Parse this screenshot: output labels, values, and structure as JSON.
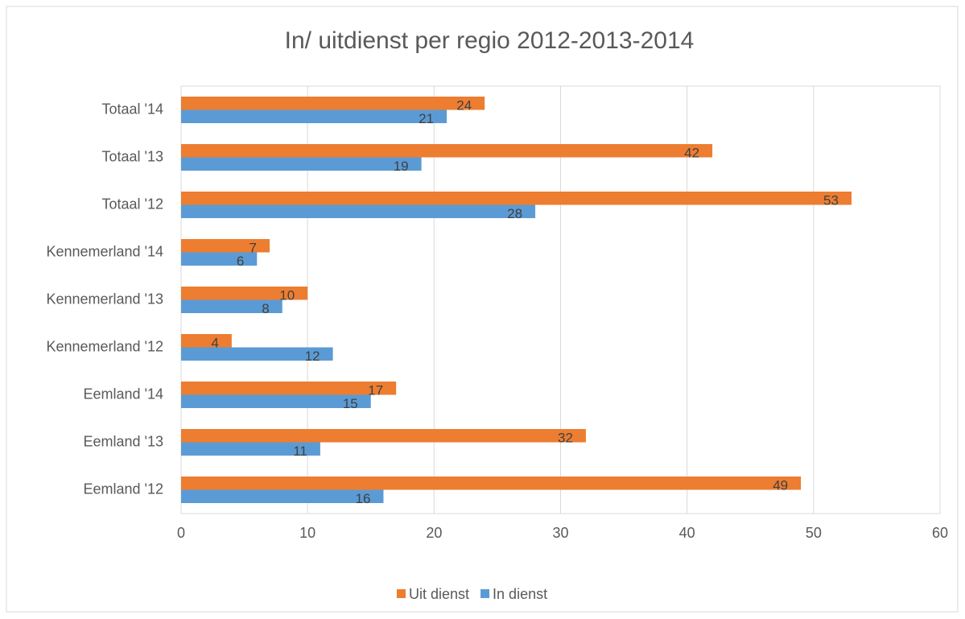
{
  "chart_data": {
    "type": "hbar",
    "title": "In/ uitdienst per regio 2012-2013-2014",
    "categories": [
      "Totaal '14",
      "Totaal '13",
      "Totaal '12",
      "Kennemerland '14",
      "Kennemerland '13",
      "Kennemerland '12",
      "Eemland '14",
      "Eemland '13",
      "Eemland '12"
    ],
    "series": [
      {
        "name": "Uit dienst",
        "color": "#ED7D31",
        "values": [
          24,
          42,
          53,
          7,
          10,
          4,
          17,
          32,
          49
        ]
      },
      {
        "name": "In dienst",
        "color": "#5B9BD5",
        "values": [
          21,
          19,
          28,
          6,
          8,
          12,
          15,
          11,
          16
        ]
      }
    ],
    "xlim": [
      0,
      60
    ],
    "xticks": [
      0,
      10,
      20,
      30,
      40,
      50,
      60
    ],
    "grid": true,
    "legend": "bottom"
  }
}
